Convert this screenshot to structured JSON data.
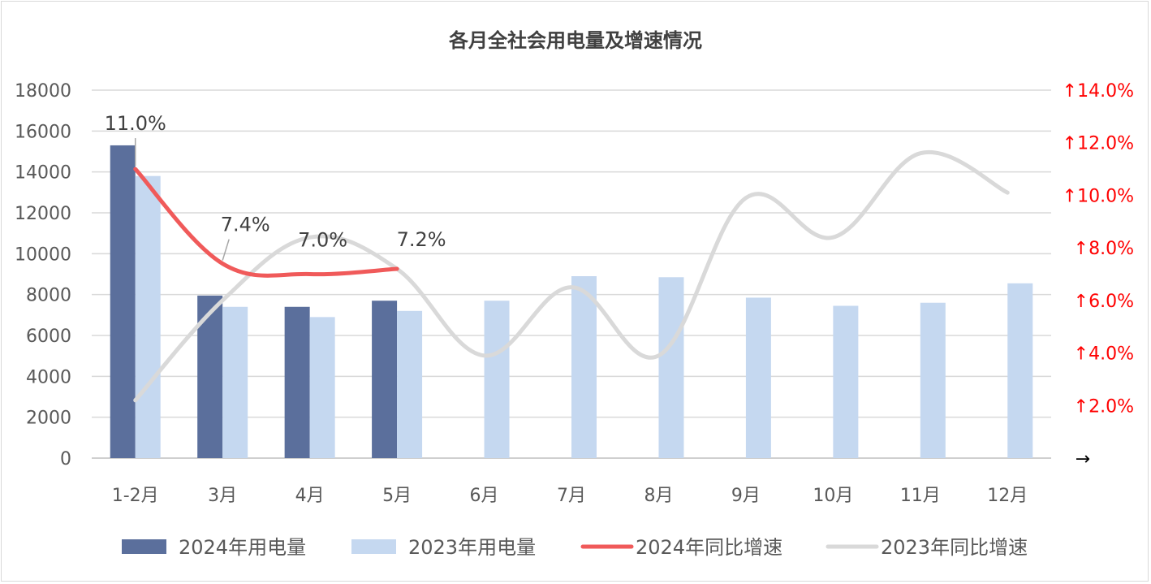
{
  "chart_data": {
    "type": "bar",
    "title": "各月全社会用电量及增速情况",
    "categories": [
      "1-2月",
      "3月",
      "4月",
      "5月",
      "6月",
      "7月",
      "8月",
      "9月",
      "10月",
      "11月",
      "12月"
    ],
    "series": [
      {
        "name": "2024年用电量",
        "kind": "bar",
        "axis": "left",
        "color": "#5b6f9c",
        "values": [
          15300,
          7950,
          7400,
          7700,
          null,
          null,
          null,
          null,
          null,
          null,
          null
        ]
      },
      {
        "name": "2023年用电量",
        "kind": "bar",
        "axis": "left",
        "color": "#c5d8f0",
        "values": [
          13800,
          7400,
          6900,
          7200,
          7700,
          8900,
          8850,
          7850,
          7450,
          7600,
          8550
        ]
      },
      {
        "name": "2024年同比增速",
        "kind": "line",
        "axis": "right",
        "color": "#f05a5a",
        "values": [
          11.0,
          7.4,
          7.0,
          7.2,
          null,
          null,
          null,
          null,
          null,
          null,
          null
        ],
        "data_labels": [
          "11.0%",
          "7.4%",
          "7.0%",
          "7.2%"
        ]
      },
      {
        "name": "2023年同比增速",
        "kind": "line",
        "axis": "right",
        "color": "#d9d9d9",
        "values": [
          2.2,
          6.0,
          8.4,
          7.2,
          3.9,
          6.5,
          3.9,
          9.9,
          8.4,
          11.6,
          10.1
        ]
      }
    ],
    "left_axis": {
      "ylim": [
        0,
        18000
      ],
      "ticks": [
        "0",
        "2000",
        "4000",
        "6000",
        "8000",
        "10000",
        "12000",
        "14000",
        "16000",
        "18000"
      ]
    },
    "right_axis": {
      "ylim": [
        0,
        14.0
      ],
      "ticks": [
        "→",
        "↑2.0%",
        "↑4.0%",
        "↑6.0%",
        "↑8.0%",
        "↑10.0%",
        "↑12.0%",
        "↑14.0%"
      ],
      "color": "#ff0000"
    },
    "grid": true,
    "legend_position": "bottom"
  }
}
